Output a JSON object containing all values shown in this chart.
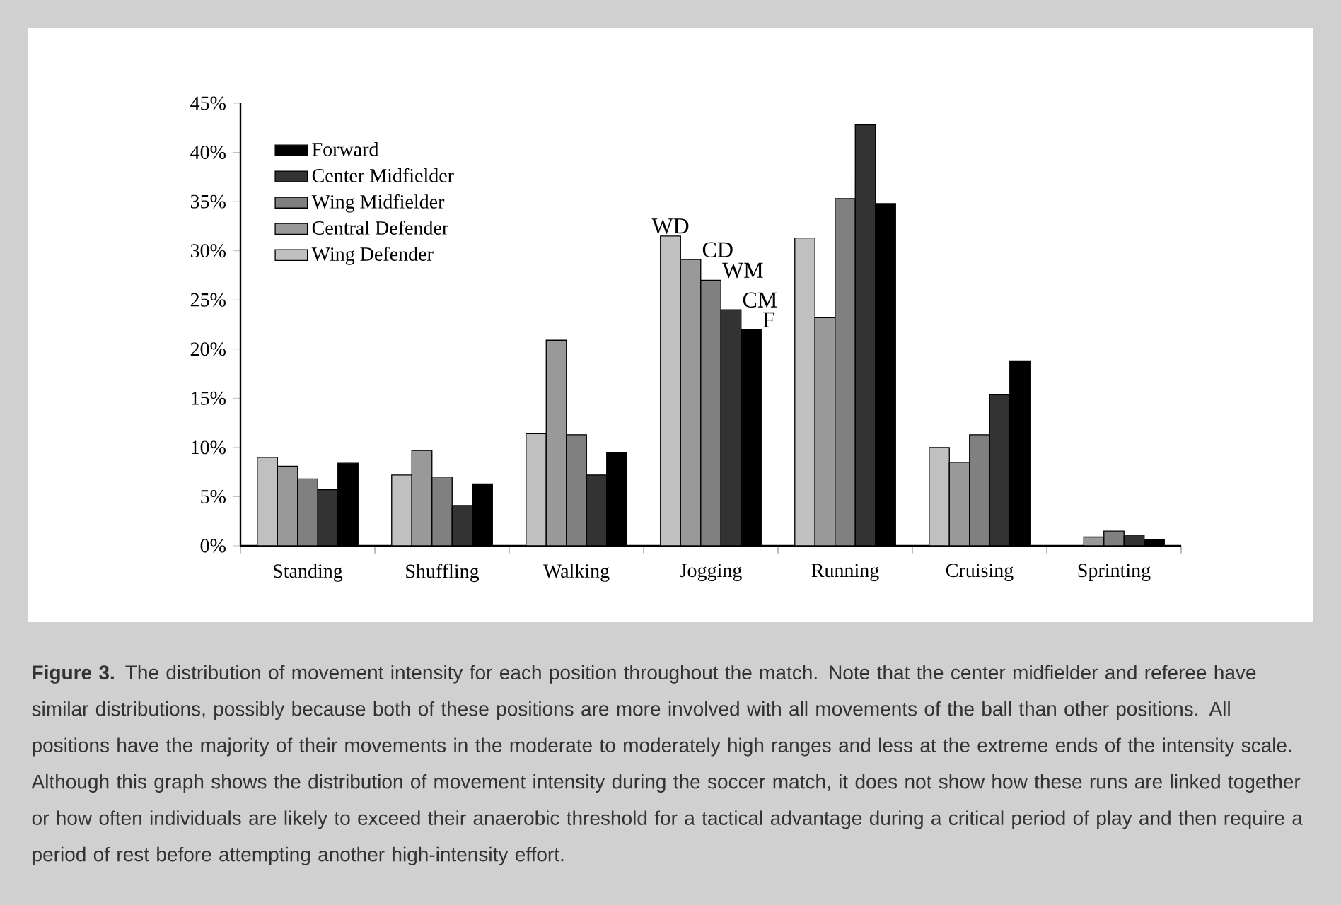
{
  "chart_data": {
    "type": "bar",
    "categories": [
      "Standing",
      "Shuffling",
      "Walking",
      "Jogging",
      "Running",
      "Cruising",
      "Sprinting"
    ],
    "series": [
      {
        "name": "Wing Defender",
        "color": "#c0c0c0",
        "values": [
          9.0,
          7.2,
          11.4,
          31.5,
          31.3,
          10.0,
          null
        ]
      },
      {
        "name": "Central Defender",
        "color": "#999999",
        "values": [
          8.1,
          9.7,
          20.9,
          29.1,
          23.2,
          8.5,
          0.9
        ]
      },
      {
        "name": "Wing Midfielder",
        "color": "#808080",
        "values": [
          6.8,
          7.0,
          11.3,
          27.0,
          35.3,
          11.3,
          1.5
        ]
      },
      {
        "name": "Center Midfielder",
        "color": "#333333",
        "values": [
          5.7,
          4.1,
          7.2,
          24.0,
          42.8,
          15.4,
          1.1
        ]
      },
      {
        "name": "Forward",
        "color": "#000000",
        "values": [
          8.4,
          6.3,
          9.5,
          22.0,
          34.8,
          18.8,
          0.6
        ]
      }
    ],
    "ylim": [
      0,
      45
    ],
    "yticks": [
      {
        "value": 0,
        "label": "0%"
      },
      {
        "value": 5,
        "label": "5%"
      },
      {
        "value": 10,
        "label": "10%"
      },
      {
        "value": 15,
        "label": "15%"
      },
      {
        "value": 20,
        "label": "20%"
      },
      {
        "value": 25,
        "label": "25%"
      },
      {
        "value": 30,
        "label": "30%"
      },
      {
        "value": 35,
        "label": "35%"
      },
      {
        "value": 40,
        "label": "40%"
      },
      {
        "value": 45,
        "label": "45%"
      }
    ],
    "legend": "top left",
    "annotations": [
      "**Figure 3.** The distribution of movement intensity for each position throughout the match. Note that the center midfielder and referee have similar distributions, possibly because both of these positions are more involved with all movements of the ball than other positions. All positions have the majority of their movements in the moderate to moderately high ranges and less at the extreme ends of the intensity scale. Although this graph shows the distribution of movement intensity during the soccer match, it does not show how these runs are linked together or how often individuals are likely to exceed their anaerobic threshold for a tactical advantage during a critical period of play and then require a period of rest before attempting another high-intensity effort.",
      "WD",
      "CD",
      "WM",
      "CM",
      "F"
    ]
  }
}
